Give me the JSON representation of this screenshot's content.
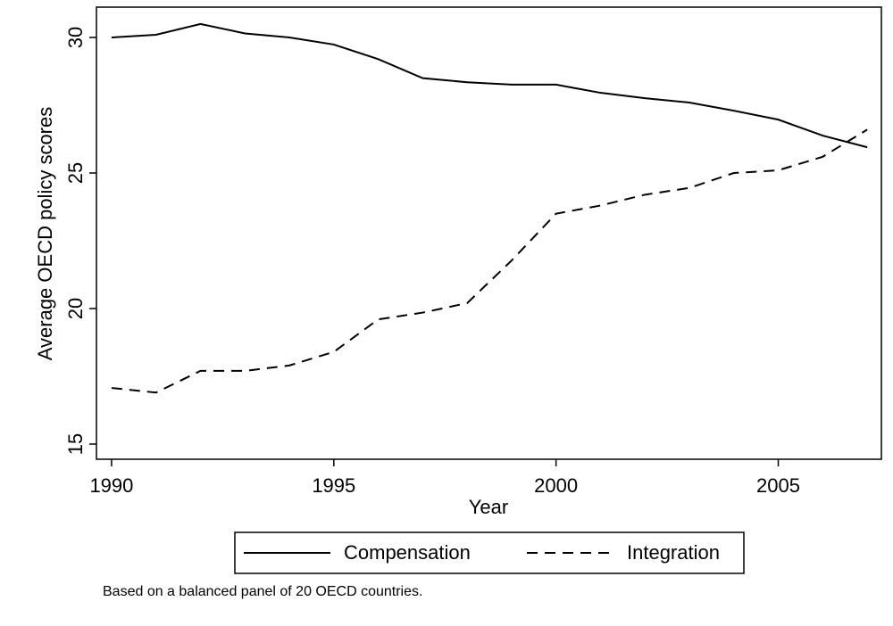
{
  "chart_data": {
    "type": "line",
    "xlabel": "Year",
    "ylabel": "Average OECD policy scores",
    "note": "Based on a balanced panel of 20 OECD countries.",
    "x": [
      1990,
      1991,
      1992,
      1993,
      1994,
      1995,
      1996,
      1997,
      1998,
      1999,
      2000,
      2001,
      2002,
      2003,
      2004,
      2005,
      2006,
      2007
    ],
    "series": [
      {
        "name": "Compensation",
        "color": "#000000",
        "line_style": "solid",
        "values": [
          30.0,
          30.1,
          30.5,
          30.15,
          30.0,
          29.74,
          29.2,
          28.5,
          28.35,
          28.26,
          28.26,
          27.96,
          27.76,
          27.6,
          27.3,
          26.97,
          26.38,
          25.95
        ]
      },
      {
        "name": "Integration",
        "color": "#000000",
        "line_style": "dashed",
        "values": [
          17.07,
          16.9,
          17.7,
          17.7,
          17.9,
          18.4,
          19.6,
          19.85,
          20.2,
          21.77,
          23.5,
          23.8,
          24.2,
          24.45,
          25.0,
          25.1,
          25.6,
          26.6
        ]
      }
    ],
    "xlim": [
      1989.66,
      2007.32
    ],
    "xticks": [
      1990,
      1995,
      2000,
      2005
    ],
    "ylim": [
      14.44,
      31.12
    ],
    "yticks": [
      15,
      20,
      25,
      30
    ],
    "grid": false
  }
}
